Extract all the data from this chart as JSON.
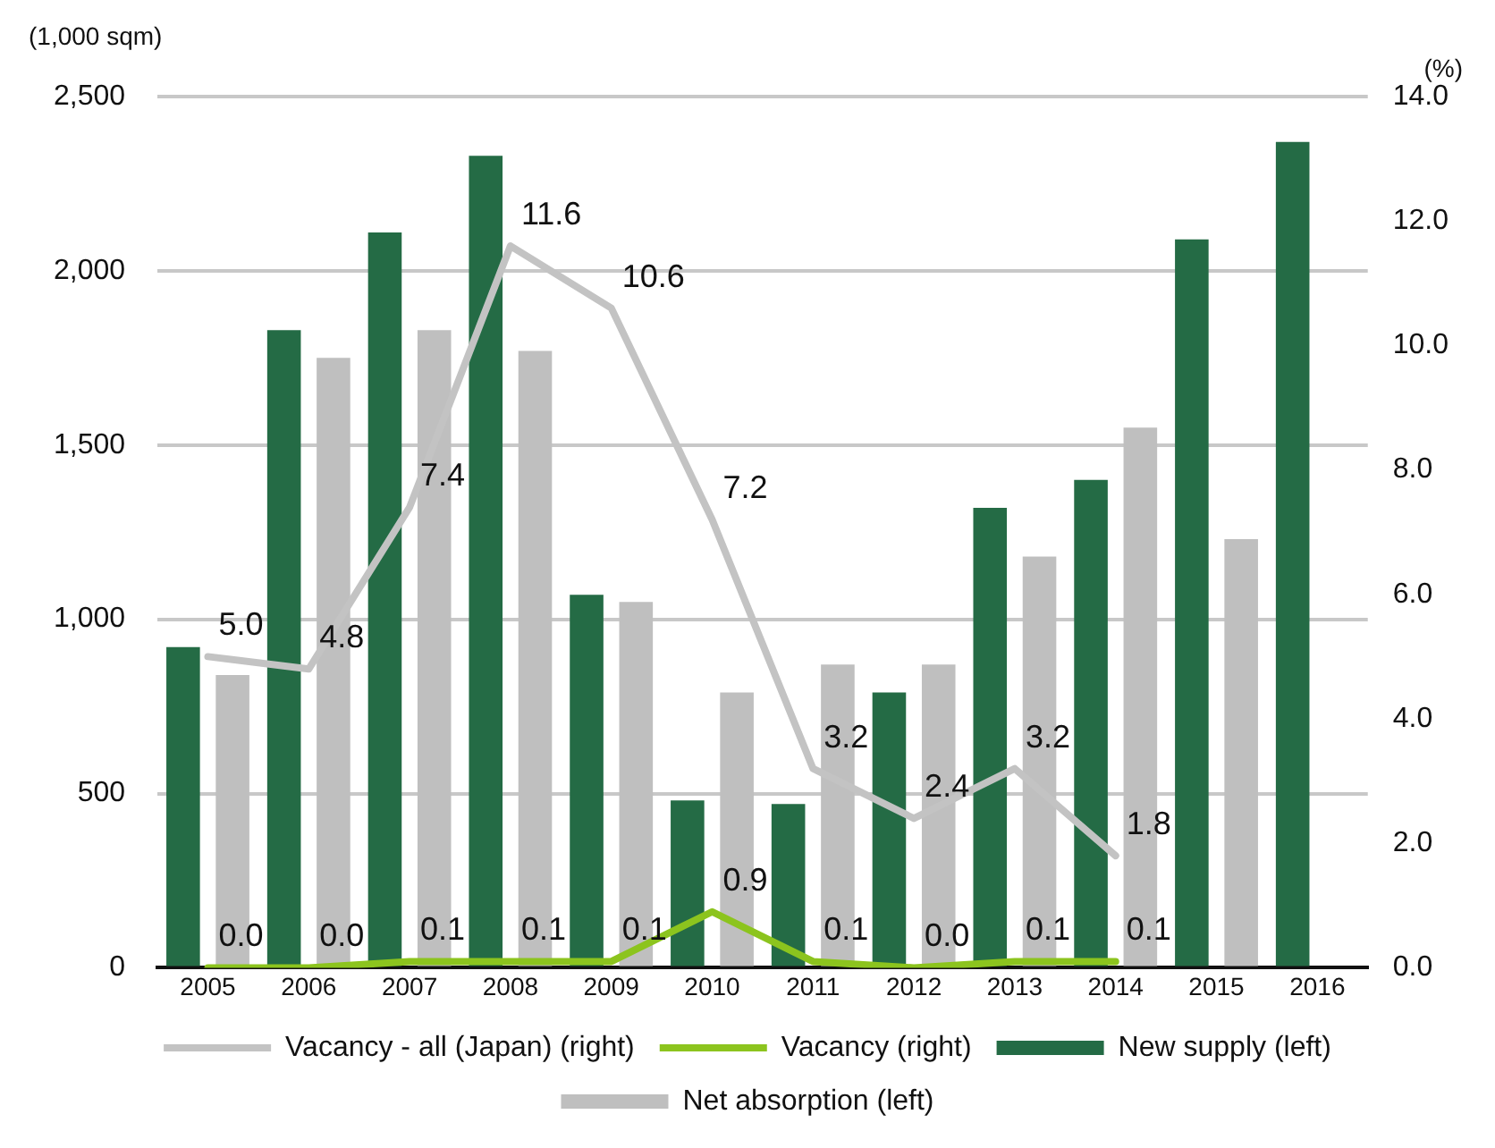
{
  "chart_data": {
    "type": "bar",
    "ylabel": "(1,000 sqm)",
    "y2label": "(%)",
    "categories": [
      "2005",
      "2006",
      "2007",
      "2008",
      "2009",
      "2010",
      "2011",
      "2012",
      "2013",
      "2014",
      "2015",
      "2016"
    ],
    "series": [
      {
        "name": "New supply (left)",
        "color": "#246b45",
        "values": [
          920,
          1830,
          2110,
          2330,
          1070,
          480,
          470,
          790,
          1320,
          1400,
          2090,
          2370
        ]
      },
      {
        "name": "Net absorption (left)",
        "color": "#bfbfbf",
        "values": [
          840,
          1750,
          1830,
          1770,
          1050,
          790,
          870,
          870,
          1180,
          1550,
          1230,
          null
        ]
      },
      {
        "name": "Vacancy - all (Japan) (right)",
        "type": "line",
        "axis": "y2",
        "color": "#c3c3c3",
        "values": [
          5.0,
          4.8,
          7.4,
          11.6,
          10.6,
          7.2,
          3.2,
          2.4,
          3.2,
          1.8,
          null,
          null
        ],
        "value_labels": [
          "5.0",
          "4.8",
          "7.4",
          "11.6",
          "10.6",
          "7.2",
          "3.2",
          "2.4",
          "3.2",
          "1.8",
          null,
          null
        ]
      },
      {
        "name": "Vacancy (right)",
        "type": "line",
        "axis": "y2",
        "color": "#8cc41e",
        "values": [
          0.0,
          0.0,
          0.1,
          0.1,
          0.1,
          0.9,
          0.1,
          0.0,
          0.1,
          0.1,
          null,
          null
        ],
        "value_labels": [
          "0.0",
          "0.0",
          "0.1",
          "0.1",
          "0.1",
          "0.9",
          "0.1",
          "0.0",
          "0.1",
          "0.1",
          null,
          null
        ]
      }
    ],
    "ylim": [
      0,
      2500
    ],
    "yticks": [
      {
        "value": 0,
        "label": "0"
      },
      {
        "value": 500,
        "label": "500"
      },
      {
        "value": 1000,
        "label": "1,000"
      },
      {
        "value": 1500,
        "label": "1,500"
      },
      {
        "value": 2000,
        "label": "2,000"
      },
      {
        "value": 2500,
        "label": "2,500"
      }
    ],
    "y2lim": [
      0,
      14
    ],
    "y2ticks": [
      {
        "value": 0,
        "label": "0.0"
      },
      {
        "value": 2,
        "label": "2.0"
      },
      {
        "value": 4,
        "label": "4.0"
      },
      {
        "value": 6,
        "label": "6.0"
      },
      {
        "value": 8,
        "label": "8.0"
      },
      {
        "value": 10,
        "label": "10.0"
      },
      {
        "value": 12,
        "label": "12.0"
      },
      {
        "value": 14,
        "label": "14.0"
      }
    ],
    "grid": "y",
    "legend": "bottom",
    "marker": "none"
  }
}
